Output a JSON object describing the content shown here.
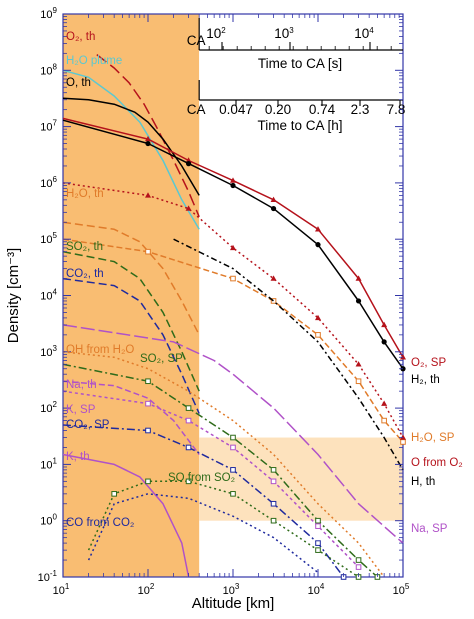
{
  "chart_data": {
    "type": "line",
    "xlabel": "Altitude [km]",
    "ylabel": "Density [cm⁻³]",
    "xscale": "log",
    "yscale": "log",
    "xlim": [
      10,
      100000
    ],
    "ylim": [
      0.1,
      1000000000
    ],
    "x_ticks": [
      "10",
      "10",
      "10",
      "10",
      "10"
    ],
    "x_tick_exponents": [
      "1",
      "2",
      "3",
      "4",
      "5"
    ],
    "y_ticks": [
      "10",
      "10",
      "10",
      "10",
      "10",
      "10",
      "10",
      "10",
      "10",
      "10",
      "10"
    ],
    "y_tick_exponents": [
      "-1",
      "0",
      "1",
      "2",
      "3",
      "4",
      "5",
      "6",
      "7",
      "8",
      "9"
    ],
    "shaded_regions": [
      {
        "x": [
          10,
          400
        ],
        "y": [
          0.1,
          1000000000
        ],
        "color": "#f9bd72"
      },
      {
        "x": [
          400,
          100000
        ],
        "y": [
          1,
          30
        ],
        "color": "#fde2bd"
      }
    ],
    "top_axes": [
      {
        "title": "Time to CA [s]",
        "origin_label": "CA",
        "ticks": [
          "10",
          "10",
          "10"
        ],
        "tick_exponents": [
          "2",
          "3",
          "4"
        ]
      },
      {
        "title": "Time to CA [h]",
        "origin_label": "CA",
        "ticks": [
          "0.047",
          "0.20",
          "0.74",
          "2.3",
          "7.8"
        ]
      }
    ],
    "series": [
      {
        "name": "O₂, th",
        "color": "#b5121b",
        "dash": "12,5",
        "points": [
          [
            25,
            190000000
          ],
          [
            40,
            110000000
          ],
          [
            60,
            60000000
          ],
          [
            90,
            25000000
          ],
          [
            130,
            9000000
          ],
          [
            200,
            2500000
          ],
          [
            300,
            700000
          ],
          [
            400,
            250000
          ]
        ]
      },
      {
        "name": "H₂O plume",
        "color": "#5cc8d0",
        "dash": "",
        "points": [
          [
            10,
            100000000
          ],
          [
            20,
            75000000
          ],
          [
            40,
            35000000
          ],
          [
            80,
            12000000
          ],
          [
            150,
            2500000
          ],
          [
            250,
            500000
          ],
          [
            400,
            150000
          ]
        ]
      },
      {
        "name": "O, th",
        "color": "#000000",
        "dash": "",
        "points": [
          [
            10,
            32000000
          ],
          [
            20,
            30000000
          ],
          [
            40,
            25000000
          ],
          [
            70,
            18000000
          ],
          [
            100,
            12000000
          ],
          [
            150,
            6000000
          ],
          [
            250,
            2000000
          ],
          [
            400,
            600000
          ]
        ]
      },
      {
        "name": "O₂, SP",
        "color": "#b5121b",
        "dash": "",
        "marker": "triangle",
        "points": [
          [
            10,
            14000000
          ],
          [
            100,
            6000000
          ],
          [
            300,
            2500000
          ],
          [
            1000,
            1100000
          ],
          [
            3000,
            500000
          ],
          [
            10000,
            150000
          ],
          [
            30000,
            20000
          ],
          [
            60000,
            3000
          ],
          [
            100000,
            800
          ]
        ]
      },
      {
        "name": "H₂, th",
        "color": "#000000",
        "dash": "",
        "marker": "circle",
        "points": [
          [
            10,
            13000000
          ],
          [
            100,
            5000000
          ],
          [
            300,
            2200000
          ],
          [
            1000,
            900000
          ],
          [
            3000,
            350000
          ],
          [
            10000,
            80000
          ],
          [
            30000,
            8000
          ],
          [
            60000,
            1500
          ],
          [
            100000,
            500
          ]
        ]
      },
      {
        "name": "H₂O, th",
        "color": "#e07b2a",
        "dash": "8,4",
        "points": [
          [
            10,
            200000
          ],
          [
            40,
            150000
          ],
          [
            80,
            90000
          ],
          [
            150,
            30000
          ],
          [
            250,
            8000
          ],
          [
            400,
            2000
          ]
        ]
      },
      {
        "name": "SO₂, th",
        "color": "#2f6b1a",
        "dash": "8,4",
        "points": [
          [
            10,
            60000
          ],
          [
            40,
            40000
          ],
          [
            80,
            20000
          ],
          [
            150,
            5000
          ],
          [
            250,
            1000
          ],
          [
            400,
            200
          ]
        ]
      },
      {
        "name": "CO₂, th",
        "color": "#1f2a9e",
        "dash": "8,4",
        "points": [
          [
            10,
            20000
          ],
          [
            40,
            15000
          ],
          [
            80,
            8000
          ],
          [
            150,
            2000
          ],
          [
            250,
            400
          ],
          [
            400,
            80
          ]
        ]
      },
      {
        "name": "H₂O, SP",
        "color": "#e07b2a",
        "dash": "6,3",
        "marker": "square",
        "points": [
          [
            10,
            100000
          ],
          [
            100,
            60000
          ],
          [
            1000,
            20000
          ],
          [
            3000,
            8000
          ],
          [
            10000,
            2000
          ],
          [
            30000,
            300
          ],
          [
            60000,
            60
          ],
          [
            100000,
            25
          ]
        ]
      },
      {
        "name": "O from O₂",
        "color": "#b5121b",
        "dash": "2,3",
        "marker": "triangle",
        "points": [
          [
            10,
            1000000
          ],
          [
            100,
            600000
          ],
          [
            300,
            350000
          ],
          [
            1000,
            70000
          ],
          [
            3000,
            20000
          ],
          [
            10000,
            4000
          ],
          [
            30000,
            600
          ],
          [
            60000,
            120
          ],
          [
            100000,
            30
          ]
        ]
      },
      {
        "name": "H, th",
        "color": "#000000",
        "dash": "6,3,2,3",
        "points": [
          [
            200,
            100000
          ],
          [
            1000,
            30000
          ],
          [
            3000,
            8000
          ],
          [
            10000,
            1500
          ],
          [
            30000,
            150
          ],
          [
            60000,
            30
          ],
          [
            100000,
            8
          ]
        ]
      },
      {
        "name": "OH from H₂O",
        "color": "#e07b2a",
        "dash": "2,3",
        "points": [
          [
            10,
            1000
          ],
          [
            40,
            800
          ],
          [
            100,
            500
          ],
          [
            300,
            200
          ],
          [
            1000,
            60
          ],
          [
            3000,
            15
          ],
          [
            10000,
            2
          ],
          [
            30000,
            0.4
          ],
          [
            60000,
            0.1
          ]
        ]
      },
      {
        "name": "SO₂, SP",
        "color": "#2f6b1a",
        "dash": "8,3,2,3",
        "marker": "square",
        "points": [
          [
            10,
            600
          ],
          [
            100,
            300
          ],
          [
            300,
            100
          ],
          [
            1000,
            30
          ],
          [
            3000,
            8
          ],
          [
            10000,
            1
          ],
          [
            30000,
            0.2
          ],
          [
            50000,
            0.1
          ]
        ]
      },
      {
        "name": "Na, SP",
        "color": "#b052c8",
        "dash": "14,4",
        "points": [
          [
            10,
            3000
          ],
          [
            200,
            1500
          ],
          [
            600,
            700
          ],
          [
            1000,
            400
          ],
          [
            3000,
            100
          ],
          [
            10000,
            15
          ],
          [
            30000,
            2
          ],
          [
            100000,
            0.4
          ]
        ]
      },
      {
        "name": "Na, th",
        "color": "#b052c8",
        "dash": "6,3",
        "points": [
          [
            10,
            300
          ],
          [
            40,
            250
          ],
          [
            100,
            150
          ],
          [
            200,
            60
          ],
          [
            400,
            15
          ]
        ]
      },
      {
        "name": "K, SP",
        "color": "#b052c8",
        "dash": "3,3",
        "marker": "square",
        "points": [
          [
            10,
            200
          ],
          [
            100,
            120
          ],
          [
            300,
            60
          ],
          [
            1000,
            20
          ],
          [
            3000,
            5
          ],
          [
            10000,
            0.8
          ],
          [
            30000,
            0.15
          ]
        ]
      },
      {
        "name": "CO₂, SP",
        "color": "#1f2a9e",
        "dash": "8,3,2,3",
        "marker": "square",
        "points": [
          [
            10,
            50
          ],
          [
            100,
            40
          ],
          [
            300,
            20
          ],
          [
            1000,
            8
          ],
          [
            3000,
            2
          ],
          [
            10000,
            0.4
          ],
          [
            20000,
            0.1
          ]
        ]
      },
      {
        "name": "K, th",
        "color": "#b052c8",
        "dash": "",
        "points": [
          [
            10,
            15
          ],
          [
            40,
            10
          ],
          [
            80,
            6
          ],
          [
            150,
            2
          ],
          [
            250,
            0.4
          ],
          [
            300,
            0.1
          ]
        ]
      },
      {
        "name": "SO from SO₂",
        "color": "#2f6b1a",
        "dash": "2,3",
        "marker": "square",
        "points": [
          [
            20,
            0.3
          ],
          [
            40,
            3
          ],
          [
            100,
            5
          ],
          [
            300,
            5
          ],
          [
            1000,
            3
          ],
          [
            3000,
            1
          ],
          [
            10000,
            0.3
          ],
          [
            30000,
            0.1
          ]
        ]
      },
      {
        "name": "CO from CO₂",
        "color": "#1f2a9e",
        "dash": "2,3",
        "points": [
          [
            20,
            0.2
          ],
          [
            40,
            2
          ],
          [
            100,
            3
          ],
          [
            300,
            2.5
          ],
          [
            1000,
            1.2
          ],
          [
            3000,
            0.5
          ],
          [
            10000,
            0.12
          ]
        ]
      }
    ]
  }
}
